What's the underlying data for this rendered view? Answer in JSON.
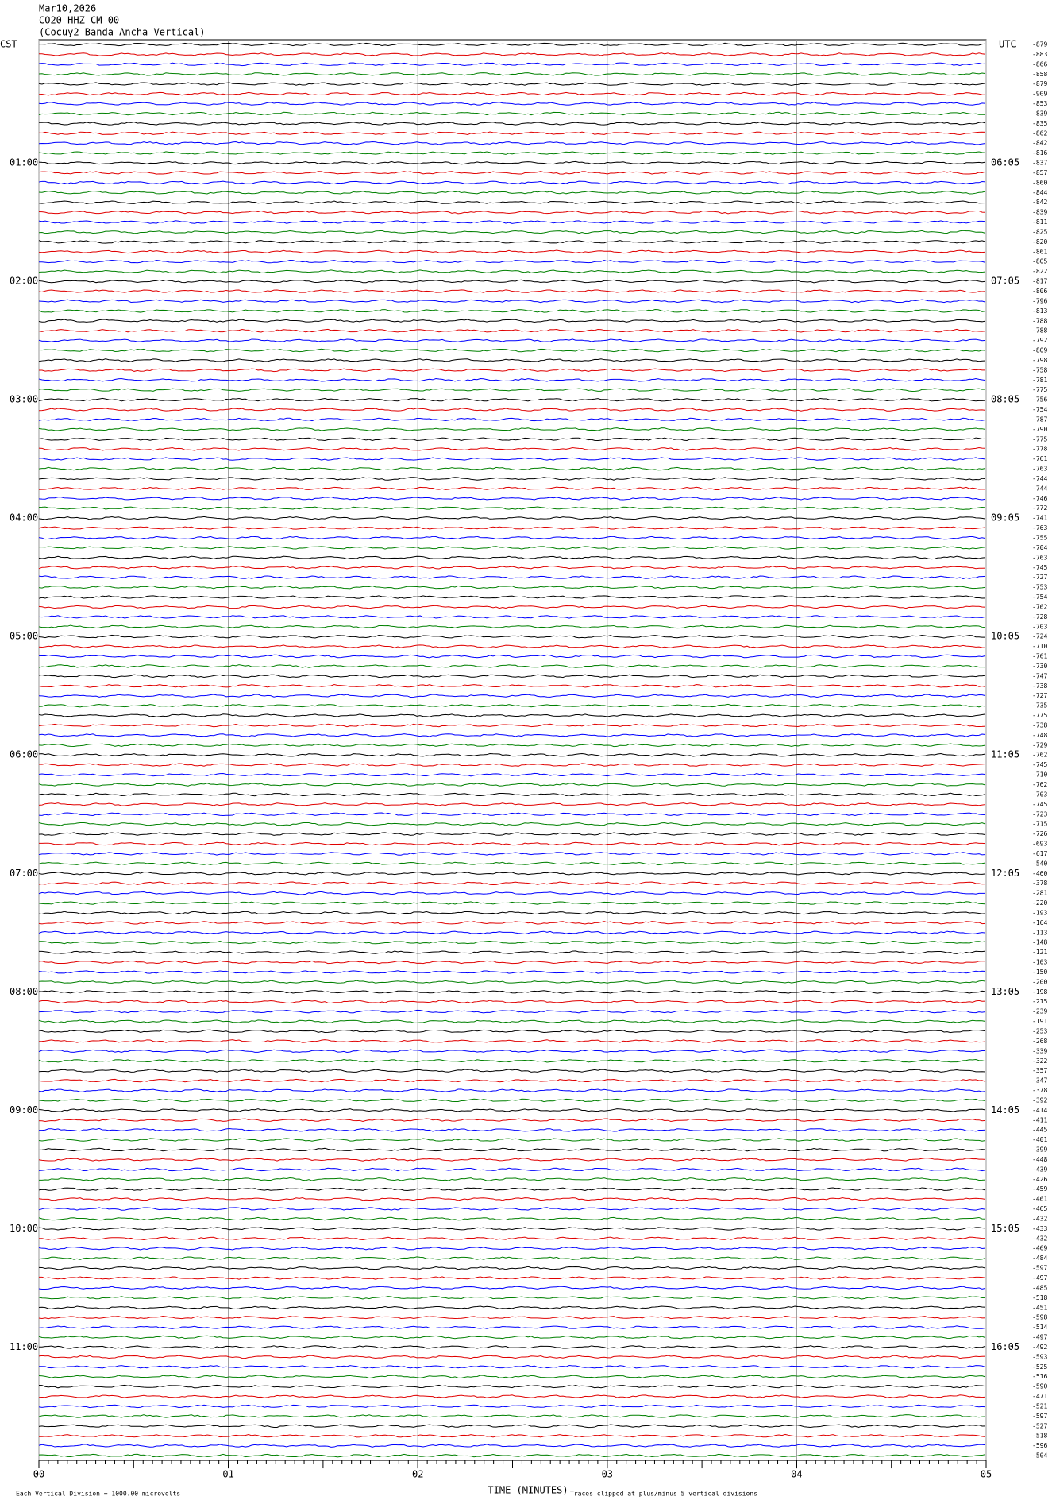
{
  "header": {
    "date": "Mar10,2026",
    "station": "CO20 HHZ CM 00",
    "description": "(Cocuy2 Banda Ancha Vertical)"
  },
  "left_axis": {
    "title": "CST",
    "labels": [
      "01:00",
      "02:00",
      "03:00",
      "04:00",
      "05:00",
      "06:00",
      "07:00",
      "08:00",
      "09:00",
      "10:00",
      "11:00"
    ]
  },
  "right_axis": {
    "title": "UTC",
    "labels": [
      "06:05",
      "07:05",
      "08:05",
      "09:05",
      "10:05",
      "11:05",
      "12:05",
      "13:05",
      "14:05",
      "15:05",
      "16:05"
    ]
  },
  "trace_colors": [
    "#000000",
    "#e00000",
    "#0000ff",
    "#008000"
  ],
  "trace_offsets": [
    -879,
    -883,
    -866,
    -858,
    -879,
    -909,
    -853,
    -839,
    -835,
    -862,
    -842,
    -816,
    -837,
    -857,
    -860,
    -844,
    -842,
    -839,
    -811,
    -825,
    -820,
    -861,
    -805,
    -822,
    -817,
    -806,
    -796,
    -813,
    -788,
    -788,
    -792,
    -809,
    -798,
    -758,
    -781,
    -775,
    -756,
    -754,
    -787,
    -790,
    -775,
    -778,
    -761,
    -763,
    -744,
    -744,
    -746,
    -772,
    -741,
    -763,
    -755,
    -704,
    -763,
    -745,
    -727,
    -753,
    -754,
    -762,
    -728,
    -703,
    -724,
    -710,
    -761,
    -730,
    -747,
    -738,
    -727,
    -735,
    -775,
    -738,
    -748,
    -729,
    -762,
    -745,
    -710,
    -762,
    -703,
    -745,
    -723,
    -715,
    -726,
    -693,
    -617,
    -540,
    -460,
    -378,
    -281,
    -220,
    -193,
    -164,
    -113,
    -148,
    -121,
    -103,
    -150,
    -200,
    -198,
    -215,
    -239,
    -191,
    -253,
    -268,
    -339,
    -322,
    -357,
    -347,
    -378,
    -392,
    -414,
    -411,
    -445,
    -401,
    -399,
    -448,
    -439,
    -426,
    -459,
    -461,
    -465,
    -432,
    -433,
    -432,
    -469,
    -484,
    -597,
    -497,
    -485,
    -518,
    -451,
    -598,
    -514,
    -497,
    -492,
    -593,
    -525,
    -516,
    -590,
    -471,
    -521,
    -597,
    -527,
    -518,
    -596,
    -504
  ],
  "x_axis": {
    "title": "TIME (MINUTES)",
    "xlim": [
      0,
      5
    ],
    "ticks": [
      {
        "value": 0,
        "label": "00"
      },
      {
        "value": 1,
        "label": "01"
      },
      {
        "value": 2,
        "label": "02"
      },
      {
        "value": 3,
        "label": "03"
      },
      {
        "value": 4,
        "label": "04"
      },
      {
        "value": 5,
        "label": "05"
      }
    ]
  },
  "footer": {
    "scale_note": "Each Vertical Division = 1000.00 microvolts",
    "clip_note": "Traces clipped at plus/minus 5 vertical divisions"
  }
}
